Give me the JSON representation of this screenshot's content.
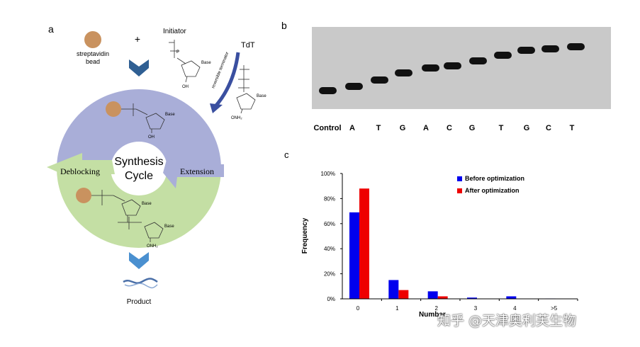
{
  "panel_a": {
    "label": "a",
    "bead_label_1": "streptavidin",
    "bead_label_2": "bead",
    "plus": "+",
    "initiator": "Initiator",
    "tdt": "TdT",
    "reversible_terminator": "reversible terminator",
    "cycle_title_1": "Synthesis",
    "cycle_title_2": "Cycle",
    "deblocking": "Deblocking",
    "extension": "Extension",
    "product": "Product",
    "base": "Base",
    "oh": "OH",
    "onh2": "ONH₂",
    "p": "P",
    "o": "O",
    "colors": {
      "top_ring": "#a9aed8",
      "bottom_ring": "#c4dfa4",
      "bead": "#c9925f",
      "chevron": "#2f5f93",
      "tdt_arrow": "#3a4fa0"
    }
  },
  "panel_b": {
    "label": "b",
    "lanes": [
      "Control",
      "A",
      "T",
      "G",
      "A",
      "C",
      "G",
      "T",
      "G",
      "C",
      "T"
    ]
  },
  "panel_c": {
    "label": "c",
    "watermark": "知乎 @天津奥利芙生物",
    "chart_data": {
      "type": "bar",
      "categories": [
        "0",
        "1",
        "2",
        "3",
        "4",
        ">5"
      ],
      "series": [
        {
          "name": "Before optimization",
          "color": "#0000ee",
          "values": [
            69,
            15,
            6,
            1,
            2,
            0.3
          ]
        },
        {
          "name": "After optimization",
          "color": "#ee0000",
          "values": [
            88,
            7,
            2,
            0,
            0,
            0
          ]
        }
      ],
      "ylabel": "Frequency",
      "xlabel": "Number",
      "yticks": [
        "0%",
        "20%",
        "40%",
        "60%",
        "80%",
        "100%"
      ],
      "ylim": [
        0,
        100
      ],
      "legend": "top-right"
    }
  }
}
